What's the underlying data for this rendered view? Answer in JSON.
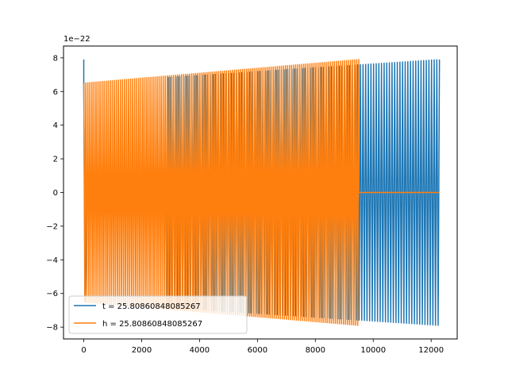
{
  "chart_data": {
    "type": "line",
    "title": "",
    "xlabel": "",
    "ylabel": "",
    "y_offset_text": "1e−22",
    "y_scale": 1e-22,
    "xlim": [
      -700,
      12900
    ],
    "ylim": [
      -8.7,
      8.7
    ],
    "x_ticks": [
      0,
      2000,
      4000,
      6000,
      8000,
      10000,
      12000
    ],
    "x_tick_labels": [
      "0",
      "2000",
      "4000",
      "6000",
      "8000",
      "10000",
      "12000"
    ],
    "y_ticks": [
      -8,
      -6,
      -4,
      -2,
      0,
      2,
      4,
      6,
      8
    ],
    "y_tick_labels": [
      "−8",
      "−6",
      "−4",
      "−2",
      "0",
      "2",
      "4",
      "6",
      "8"
    ],
    "grid": false,
    "legend": "lower-left",
    "series": [
      {
        "name": "t = 25.80860848085267",
        "color": "#1f77b4",
        "description": "oscillating signal, x from 0 to 12287; amplitude grows from about 6.5 to 7.9 (x1e-22); nearly flat near 0 between x=0..2850; spike to 7.9 at x=0",
        "x_start": 0,
        "x_end": 12287,
        "amp_start": 6.5,
        "amp_end": 7.9,
        "flat_until": 2850,
        "n_cycles": 135
      },
      {
        "name": "h = 25.80860848085267",
        "color": "#ff7f0e",
        "description": "oscillating signal, x from 0 to about 9500; amplitude grows from about 6.5 to 7.9 (x1e-22); flat at 0 from x=9500 to 12287",
        "x_start": 0,
        "x_end": 9500,
        "x_flat_end": 12287,
        "amp_start": 6.5,
        "amp_end": 7.9,
        "n_cycles": 135
      }
    ]
  }
}
